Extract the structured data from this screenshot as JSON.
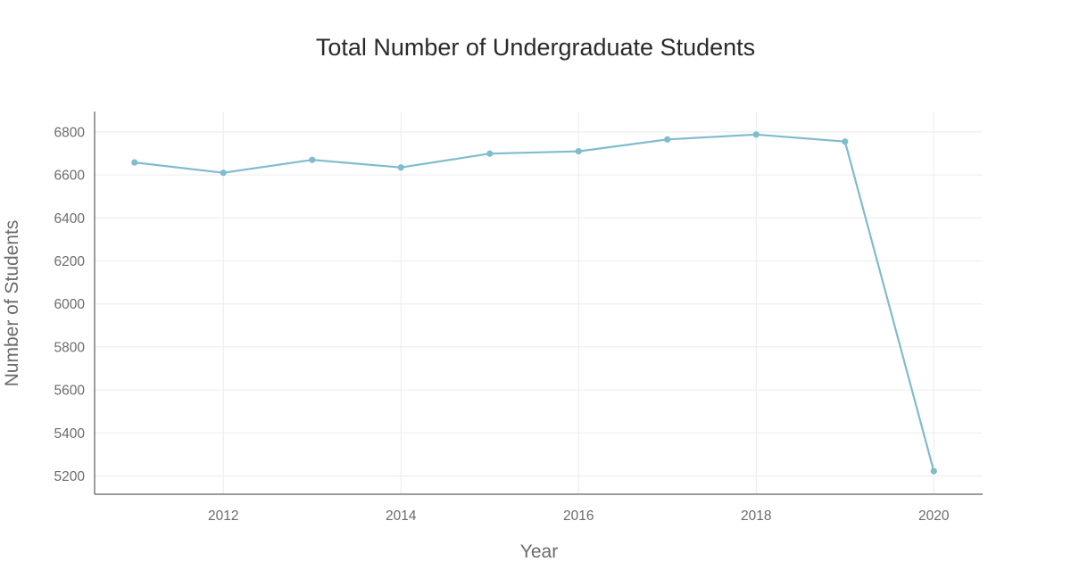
{
  "chart_data": {
    "type": "line",
    "title": "Total Number of Undergraduate Students",
    "xlabel": "Year",
    "ylabel": "Number of Students",
    "xlim": [
      2010.55,
      2020.55
    ],
    "ylim": [
      5115,
      6895
    ],
    "x_ticks": [
      2012,
      2014,
      2016,
      2018,
      2020
    ],
    "y_ticks": [
      5200,
      5400,
      5600,
      5800,
      6000,
      6200,
      6400,
      6600,
      6800
    ],
    "grid": true,
    "x": [
      2011,
      2012,
      2013,
      2014,
      2015,
      2016,
      2017,
      2018,
      2019,
      2020
    ],
    "series": [
      {
        "values": [
          6658,
          6610,
          6670,
          6635,
          6699,
          6710,
          6765,
          6788,
          6755,
          5222
        ],
        "color": "#7fbccc"
      }
    ]
  }
}
